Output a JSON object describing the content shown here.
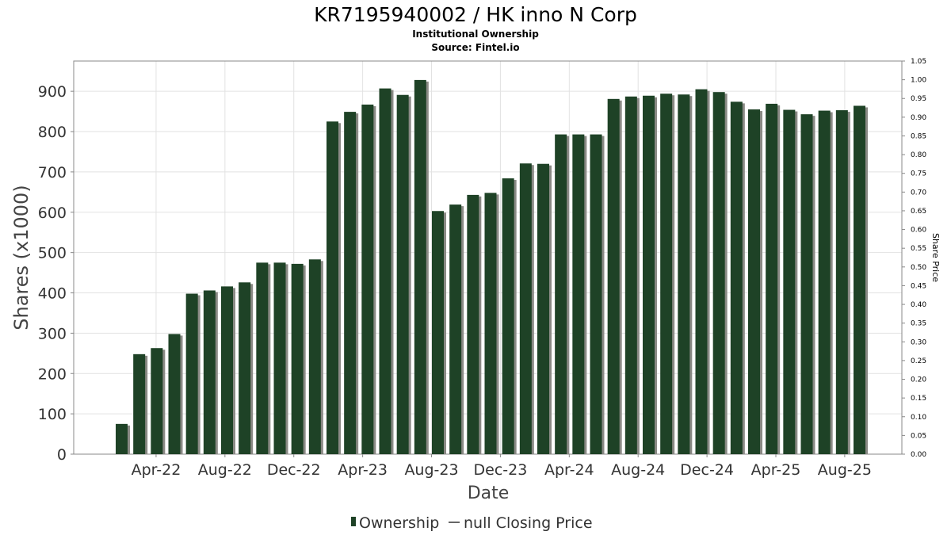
{
  "title": "KR7195940002 / HK inno N Corp",
  "subtitle_1": "Institutional Ownership",
  "subtitle_2": "Source: Fintel.io",
  "colors": {
    "bar": "#1e4226",
    "bar_shadow": "#8a8a85",
    "grid": "#e2e2e2",
    "frame": "#888888"
  },
  "chart_data": {
    "type": "bar",
    "title": "KR7195940002 / HK inno N Corp",
    "xlabel": "Date",
    "ylabel": "Shares (x1000)",
    "y2label": "Share Price",
    "ylim": [
      0,
      975
    ],
    "y2lim": [
      0,
      1.05
    ],
    "yticks": [
      0,
      100,
      200,
      300,
      400,
      500,
      600,
      700,
      800,
      900
    ],
    "y2ticks": [
      "0.00",
      "0.05",
      "0.10",
      "0.15",
      "0.20",
      "0.25",
      "0.30",
      "0.35",
      "0.40",
      "0.45",
      "0.50",
      "0.55",
      "0.60",
      "0.65",
      "0.70",
      "0.75",
      "0.80",
      "0.85",
      "0.90",
      "0.95",
      "1.00",
      "1.05"
    ],
    "xtick_labels": [
      "Apr-22",
      "Aug-22",
      "Dec-22",
      "Apr-23",
      "Aug-23",
      "Dec-23",
      "Apr-24",
      "Aug-24",
      "Dec-24",
      "Apr-25",
      "Aug-25"
    ],
    "grid": true,
    "legend_position": "bottom",
    "series": [
      {
        "name": "Ownership",
        "values": [
          75,
          248,
          263,
          298,
          398,
          406,
          416,
          426,
          475,
          475,
          472,
          483,
          825,
          849,
          867,
          907,
          891,
          928,
          603,
          619,
          643,
          648,
          684,
          721,
          720,
          793,
          793,
          793,
          881,
          887,
          889,
          894,
          892,
          905,
          898,
          874,
          855,
          869,
          854,
          843,
          852,
          853,
          864
        ]
      },
      {
        "name": "null Closing Price",
        "values": []
      }
    ]
  }
}
